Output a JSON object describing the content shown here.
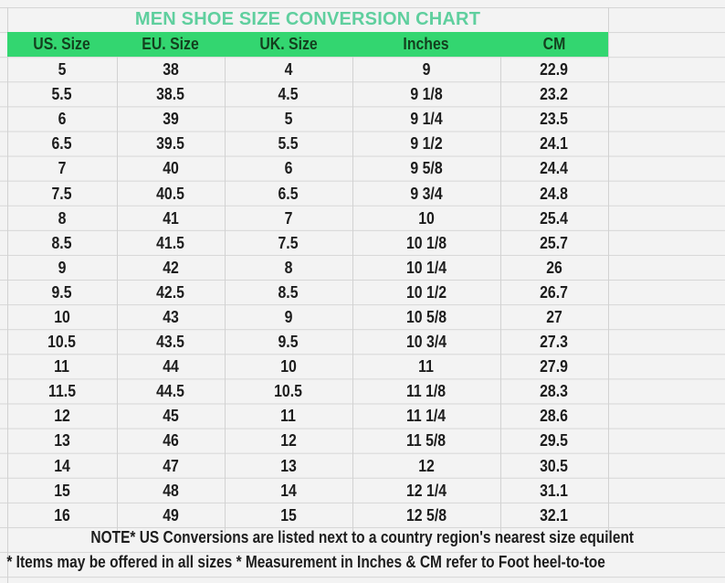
{
  "title": "MEN SHOE SIZE CONVERSION CHART",
  "colors": {
    "header_bg": "#33d670",
    "title": "#5fcf9e"
  },
  "columns": [
    "US. Size",
    "EU. Size",
    "UK. Size",
    "Inches",
    "CM"
  ],
  "rows": [
    [
      "5",
      "38",
      "4",
      "9",
      "22.9"
    ],
    [
      "5.5",
      "38.5",
      "4.5",
      "9 1/8",
      "23.2"
    ],
    [
      "6",
      "39",
      "5",
      "9 1/4",
      "23.5"
    ],
    [
      "6.5",
      "39.5",
      "5.5",
      "9 1/2",
      "24.1"
    ],
    [
      "7",
      "40",
      "6",
      "9 5/8",
      "24.4"
    ],
    [
      "7.5",
      "40.5",
      "6.5",
      "9 3/4",
      "24.8"
    ],
    [
      "8",
      "41",
      "7",
      "10",
      "25.4"
    ],
    [
      "8.5",
      "41.5",
      "7.5",
      "10 1/8",
      "25.7"
    ],
    [
      "9",
      "42",
      "8",
      "10 1/4",
      "26"
    ],
    [
      "9.5",
      "42.5",
      "8.5",
      "10 1/2",
      "26.7"
    ],
    [
      "10",
      "43",
      "9",
      "10 5/8",
      "27"
    ],
    [
      "10.5",
      "43.5",
      "9.5",
      "10 3/4",
      "27.3"
    ],
    [
      "11",
      "44",
      "10",
      "11",
      "27.9"
    ],
    [
      "11.5",
      "44.5",
      "10.5",
      "11 1/8",
      "28.3"
    ],
    [
      "12",
      "45",
      "11",
      "11 1/4",
      "28.6"
    ],
    [
      "13",
      "46",
      "12",
      "11 5/8",
      "29.5"
    ],
    [
      "14",
      "47",
      "13",
      "12",
      "30.5"
    ],
    [
      "15",
      "48",
      "14",
      "12 1/4",
      "31.1"
    ],
    [
      "16",
      "49",
      "15",
      "12 5/8",
      "32.1"
    ]
  ],
  "notes": [
    "NOTE* US Conversions are listed next to a country region's nearest size equilent",
    "* Items may be offered in all sizes * Measurement in Inches & CM refer to Foot heel-to-toe"
  ]
}
